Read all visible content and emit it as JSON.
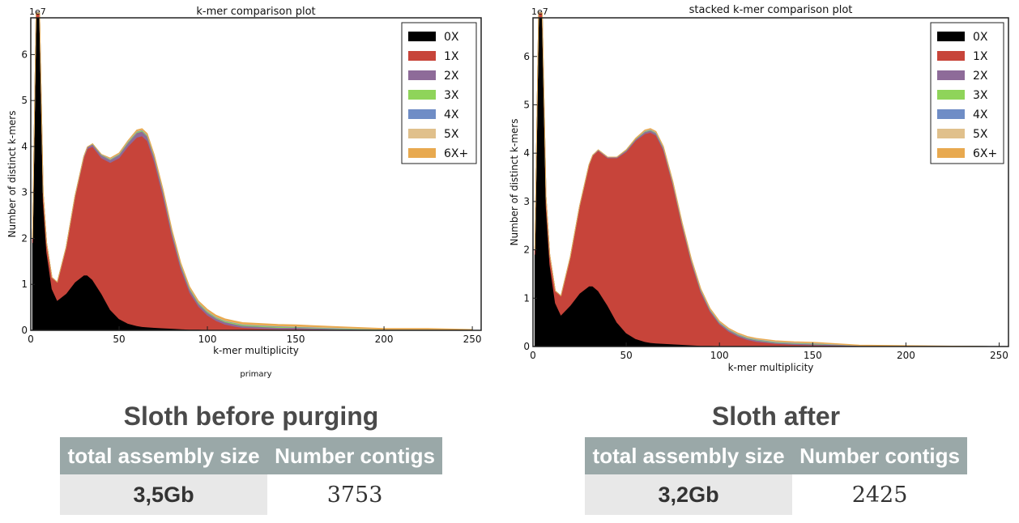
{
  "chart_data": [
    {
      "type": "area",
      "stacked": true,
      "title": "k-mer comparison plot",
      "xlabel": "k-mer multiplicity",
      "ylabel": "Number of distinct k-mers",
      "y_scale_label": "1e7",
      "caption": "primary",
      "xlim": [
        0,
        255
      ],
      "ylim": [
        0,
        6.8
      ],
      "xticks": [
        0,
        50,
        100,
        150,
        200,
        250
      ],
      "yticks": [
        0,
        1,
        2,
        3,
        4,
        5,
        6
      ],
      "grid": false,
      "legend_position": "top-right",
      "x": [
        1,
        3,
        5,
        7,
        9,
        12,
        15,
        20,
        25,
        30,
        32,
        35,
        40,
        45,
        50,
        55,
        60,
        63,
        66,
        70,
        75,
        80,
        85,
        90,
        95,
        100,
        105,
        110,
        115,
        120,
        130,
        140,
        150,
        175,
        200,
        225,
        250
      ],
      "series": [
        {
          "name": "0X",
          "color": "#000000",
          "values": [
            1.9,
            6.8,
            6.8,
            2.8,
            1.7,
            0.9,
            0.65,
            0.8,
            1.05,
            1.2,
            1.2,
            1.1,
            0.8,
            0.45,
            0.25,
            0.15,
            0.1,
            0.08,
            0.07,
            0.06,
            0.05,
            0.04,
            0.03,
            0.02,
            0.02,
            0.01,
            0.01,
            0.01,
            0.01,
            0.01,
            0.01,
            0.01,
            0.01,
            0.0,
            0.0,
            0.0,
            0.0
          ]
        },
        {
          "name": "1X",
          "color": "#c7443a",
          "values": [
            0.1,
            0.1,
            0.1,
            0.2,
            0.2,
            0.25,
            0.4,
            1.0,
            1.85,
            2.55,
            2.75,
            2.9,
            2.95,
            3.2,
            3.5,
            3.85,
            4.1,
            4.15,
            4.05,
            3.6,
            2.85,
            2.0,
            1.3,
            0.8,
            0.5,
            0.32,
            0.2,
            0.12,
            0.08,
            0.05,
            0.03,
            0.02,
            0.02,
            0.01,
            0.0,
            0.0,
            0.0
          ]
        },
        {
          "name": "2X",
          "color": "#8e6b99",
          "values": [
            0.0,
            0.0,
            0.0,
            0.0,
            0.0,
            0.0,
            0.0,
            0.01,
            0.02,
            0.03,
            0.04,
            0.05,
            0.06,
            0.06,
            0.07,
            0.08,
            0.1,
            0.1,
            0.1,
            0.1,
            0.1,
            0.09,
            0.08,
            0.07,
            0.06,
            0.06,
            0.05,
            0.05,
            0.05,
            0.04,
            0.04,
            0.03,
            0.03,
            0.02,
            0.01,
            0.01,
            0.01
          ]
        },
        {
          "name": "3X",
          "color": "#8fd45a",
          "values": [
            0.0,
            0.0,
            0.0,
            0.0,
            0.0,
            0.0,
            0.0,
            0.0,
            0.0,
            0.0,
            0.0,
            0.01,
            0.01,
            0.01,
            0.01,
            0.02,
            0.02,
            0.02,
            0.02,
            0.02,
            0.02,
            0.02,
            0.02,
            0.02,
            0.02,
            0.02,
            0.02,
            0.02,
            0.02,
            0.02,
            0.02,
            0.02,
            0.01,
            0.01,
            0.01,
            0.01,
            0.0
          ]
        },
        {
          "name": "4X",
          "color": "#6f8dc6",
          "values": [
            0.0,
            0.0,
            0.0,
            0.0,
            0.0,
            0.0,
            0.0,
            0.0,
            0.0,
            0.0,
            0.0,
            0.0,
            0.01,
            0.01,
            0.01,
            0.01,
            0.01,
            0.01,
            0.01,
            0.01,
            0.01,
            0.01,
            0.01,
            0.01,
            0.01,
            0.01,
            0.01,
            0.01,
            0.01,
            0.01,
            0.01,
            0.01,
            0.01,
            0.01,
            0.0,
            0.0,
            0.0
          ]
        },
        {
          "name": "5X",
          "color": "#e0c08c",
          "values": [
            0.0,
            0.0,
            0.0,
            0.0,
            0.0,
            0.0,
            0.0,
            0.0,
            0.0,
            0.0,
            0.0,
            0.0,
            0.0,
            0.01,
            0.01,
            0.01,
            0.01,
            0.01,
            0.01,
            0.01,
            0.01,
            0.01,
            0.01,
            0.01,
            0.01,
            0.01,
            0.01,
            0.01,
            0.01,
            0.01,
            0.01,
            0.01,
            0.01,
            0.01,
            0.0,
            0.0,
            0.0
          ]
        },
        {
          "name": "6X+",
          "color": "#e8a94f",
          "values": [
            0.0,
            0.0,
            0.0,
            0.0,
            0.0,
            0.0,
            0.0,
            0.0,
            0.0,
            0.0,
            0.0,
            0.0,
            0.0,
            0.01,
            0.01,
            0.01,
            0.02,
            0.02,
            0.02,
            0.02,
            0.02,
            0.02,
            0.02,
            0.02,
            0.02,
            0.03,
            0.03,
            0.03,
            0.03,
            0.03,
            0.03,
            0.03,
            0.03,
            0.02,
            0.02,
            0.02,
            0.01
          ]
        }
      ]
    },
    {
      "type": "area",
      "stacked": true,
      "title": "stacked  k-mer comparison plot",
      "xlabel": "k-mer multiplicity",
      "ylabel": "Number of distinct k-mers",
      "y_scale_label": "1e7",
      "xlim": [
        0,
        255
      ],
      "ylim": [
        0,
        6.8
      ],
      "xticks": [
        0,
        50,
        100,
        150,
        200,
        250
      ],
      "yticks": [
        0,
        1,
        2,
        3,
        4,
        5,
        6
      ],
      "grid": false,
      "legend_position": "top-right",
      "x": [
        1,
        3,
        5,
        7,
        9,
        12,
        15,
        20,
        25,
        30,
        32,
        35,
        40,
        45,
        50,
        55,
        60,
        63,
        66,
        70,
        75,
        80,
        85,
        90,
        95,
        100,
        105,
        110,
        115,
        120,
        130,
        140,
        150,
        175,
        200,
        225,
        250
      ],
      "series": [
        {
          "name": "0X",
          "color": "#000000",
          "values": [
            1.9,
            6.8,
            6.8,
            2.9,
            1.7,
            0.9,
            0.65,
            0.85,
            1.1,
            1.25,
            1.25,
            1.15,
            0.85,
            0.5,
            0.28,
            0.16,
            0.1,
            0.08,
            0.07,
            0.06,
            0.05,
            0.04,
            0.03,
            0.02,
            0.02,
            0.01,
            0.01,
            0.01,
            0.01,
            0.01,
            0.01,
            0.01,
            0.01,
            0.0,
            0.0,
            0.0,
            0.0
          ]
        },
        {
          "name": "1X",
          "color": "#c7443a",
          "values": [
            0.1,
            0.1,
            0.1,
            0.2,
            0.2,
            0.25,
            0.4,
            1.0,
            1.8,
            2.5,
            2.7,
            2.9,
            3.05,
            3.4,
            3.75,
            4.1,
            4.3,
            4.35,
            4.3,
            4.0,
            3.3,
            2.45,
            1.7,
            1.1,
            0.7,
            0.45,
            0.3,
            0.2,
            0.13,
            0.09,
            0.05,
            0.03,
            0.02,
            0.01,
            0.0,
            0.0,
            0.0
          ]
        },
        {
          "name": "2X",
          "color": "#8e6b99",
          "values": [
            0.0,
            0.0,
            0.0,
            0.0,
            0.0,
            0.0,
            0.0,
            0.0,
            0.01,
            0.01,
            0.01,
            0.02,
            0.02,
            0.02,
            0.03,
            0.03,
            0.04,
            0.04,
            0.04,
            0.04,
            0.04,
            0.04,
            0.04,
            0.04,
            0.03,
            0.03,
            0.03,
            0.03,
            0.03,
            0.03,
            0.02,
            0.02,
            0.02,
            0.01,
            0.01,
            0.01,
            0.0
          ]
        },
        {
          "name": "3X",
          "color": "#8fd45a",
          "values": [
            0.0,
            0.0,
            0.0,
            0.0,
            0.0,
            0.0,
            0.0,
            0.0,
            0.0,
            0.0,
            0.0,
            0.0,
            0.0,
            0.0,
            0.01,
            0.01,
            0.01,
            0.01,
            0.01,
            0.01,
            0.01,
            0.01,
            0.01,
            0.01,
            0.01,
            0.01,
            0.01,
            0.01,
            0.01,
            0.01,
            0.01,
            0.01,
            0.01,
            0.0,
            0.0,
            0.0,
            0.0
          ]
        },
        {
          "name": "4X",
          "color": "#6f8dc6",
          "values": [
            0.0,
            0.0,
            0.0,
            0.0,
            0.0,
            0.0,
            0.0,
            0.0,
            0.0,
            0.0,
            0.0,
            0.0,
            0.0,
            0.0,
            0.0,
            0.0,
            0.01,
            0.01,
            0.01,
            0.01,
            0.01,
            0.01,
            0.01,
            0.01,
            0.01,
            0.01,
            0.01,
            0.01,
            0.01,
            0.01,
            0.01,
            0.01,
            0.01,
            0.0,
            0.0,
            0.0,
            0.0
          ]
        },
        {
          "name": "5X",
          "color": "#e0c08c",
          "values": [
            0.0,
            0.0,
            0.0,
            0.0,
            0.0,
            0.0,
            0.0,
            0.0,
            0.0,
            0.0,
            0.0,
            0.0,
            0.0,
            0.0,
            0.0,
            0.0,
            0.01,
            0.01,
            0.01,
            0.01,
            0.01,
            0.01,
            0.01,
            0.01,
            0.01,
            0.01,
            0.01,
            0.01,
            0.01,
            0.01,
            0.01,
            0.01,
            0.01,
            0.0,
            0.0,
            0.0,
            0.0
          ]
        },
        {
          "name": "6X+",
          "color": "#e8a94f",
          "values": [
            0.0,
            0.0,
            0.0,
            0.0,
            0.0,
            0.0,
            0.0,
            0.0,
            0.0,
            0.0,
            0.0,
            0.0,
            0.0,
            0.0,
            0.0,
            0.01,
            0.01,
            0.01,
            0.01,
            0.01,
            0.01,
            0.01,
            0.01,
            0.01,
            0.01,
            0.01,
            0.01,
            0.01,
            0.01,
            0.01,
            0.01,
            0.01,
            0.01,
            0.01,
            0.01,
            0.0,
            0.0
          ]
        }
      ]
    }
  ],
  "before": {
    "heading": "Sloth before purging",
    "col_size": "total assembly size",
    "col_contigs": "Number contigs",
    "size": "3,5Gb",
    "contigs": "3753"
  },
  "after": {
    "heading": "Sloth after",
    "col_size": "total assembly size",
    "col_contigs": "Number contigs",
    "size": "3,2Gb",
    "contigs": "2425"
  }
}
